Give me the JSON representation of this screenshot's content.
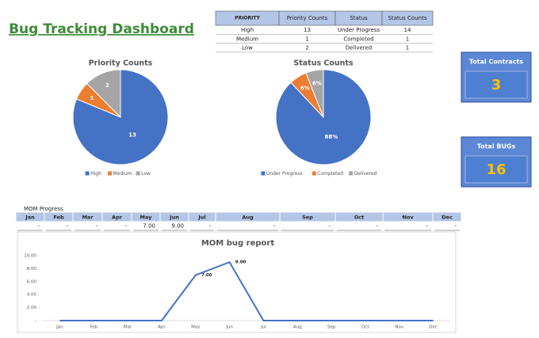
{
  "header": {
    "title": "Bug Tracking Dashboard"
  },
  "table": {
    "columns": [
      "PRIORITY",
      "Priority Counts",
      "Status",
      "Status Counts"
    ],
    "rows": [
      [
        "High",
        13,
        "Under Progress",
        14
      ],
      [
        "Medium",
        1,
        "Completed",
        1
      ],
      [
        "Low",
        2,
        "Delivered",
        1
      ]
    ]
  },
  "cards": [
    {
      "label": "Total Contracts",
      "value": 3
    },
    {
      "label": "Total BUGs",
      "value": 16
    }
  ],
  "mom_table": {
    "label": "MOM Progress",
    "months": [
      "Jan",
      "Feb",
      "Mar",
      "Apr",
      "May",
      "Jun",
      "Jul",
      "Aug",
      "Sep",
      "Oct",
      "Nov",
      "Dec"
    ],
    "values": [
      "-",
      "-",
      "-",
      "-",
      "7.00",
      "9.00",
      "-",
      "-",
      "-",
      "-",
      "-",
      "-"
    ]
  },
  "chart_data": [
    {
      "type": "pie",
      "title": "Priority Counts",
      "categories": [
        "High",
        "Medium",
        "Low"
      ],
      "values": [
        13,
        1,
        2
      ],
      "colors": [
        "#4472c4",
        "#ed7d31",
        "#a5a5a5"
      ],
      "legend": "bottom"
    },
    {
      "type": "pie",
      "title": "Status Counts",
      "categories": [
        "Under Progress",
        "Completed",
        "Delivered"
      ],
      "values": [
        88,
        6,
        6
      ],
      "value_labels": [
        "88%",
        "6%",
        "6%"
      ],
      "colors": [
        "#4472c4",
        "#ed7d31",
        "#a5a5a5"
      ],
      "legend": "bottom"
    },
    {
      "type": "line",
      "title": "MOM bug report",
      "categories": [
        "Jan",
        "Feb",
        "Mar",
        "Apr",
        "May",
        "Jun",
        "Jul",
        "Aug",
        "Sep",
        "Oct",
        "Nov",
        "Dec"
      ],
      "values": [
        0,
        0,
        0,
        0,
        7,
        9,
        0,
        0,
        0,
        0,
        0,
        0
      ],
      "value_labels": [
        null,
        null,
        null,
        null,
        "7.00",
        "9.00",
        null,
        null,
        null,
        null,
        null,
        null
      ],
      "color": "#4472c4",
      "ylim": [
        0,
        10
      ],
      "yticks": [
        {
          "value": 0,
          "label": "-"
        },
        {
          "value": 2,
          "label": "2.00"
        },
        {
          "value": 4,
          "label": "4.00"
        },
        {
          "value": 6,
          "label": "6.00"
        },
        {
          "value": 8,
          "label": "8.00"
        },
        {
          "value": 10,
          "label": "10.00"
        }
      ]
    }
  ]
}
